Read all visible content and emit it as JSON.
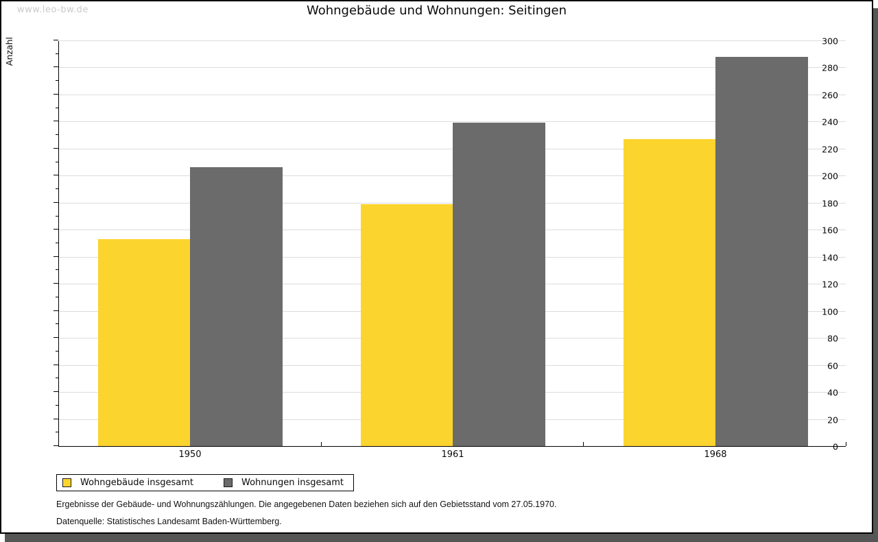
{
  "watermark": "www.leo-bw.de",
  "title": "Wohngebäude und Wohnungen: Seitingen",
  "chart_data": {
    "type": "bar",
    "title": "Wohngebäude und Wohnungen: Seitingen",
    "ylabel": "Anzahl",
    "xlabel": "",
    "categories": [
      "1950",
      "1961",
      "1968"
    ],
    "series": [
      {
        "name": "Wohngebäude insgesamt",
        "color": "#FCD42E",
        "values": [
          153,
          179,
          227
        ]
      },
      {
        "name": "Wohnungen insgesamt",
        "color": "#6B6B6B",
        "values": [
          206,
          239,
          288
        ]
      }
    ],
    "ylim": [
      0,
      300
    ],
    "ytick_step": 20,
    "minor_tick_step": 10,
    "grid": true,
    "gridline_color": "#dcdcdc",
    "legend_position": "bottom-left"
  },
  "footer": {
    "line1": "Ergebnisse der Gebäude- und Wohnungszählungen. Die angegebenen Daten beziehen sich auf den Gebietsstand vom 27.05.1970.",
    "line2": "Datenquelle: Statistisches Landesamt Baden-Württemberg."
  }
}
